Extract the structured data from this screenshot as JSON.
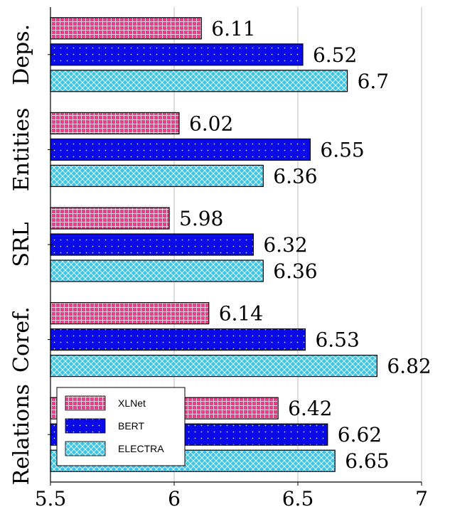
{
  "chart_data": {
    "type": "bar",
    "orientation": "horizontal",
    "categories": [
      "Deps.",
      "Entities",
      "SRL",
      "Coref.",
      "Relations"
    ],
    "series": [
      {
        "name": "XLNet",
        "values": [
          6.11,
          6.02,
          5.98,
          6.14,
          6.42
        ],
        "color": "#ee3d8c",
        "pattern": "grid"
      },
      {
        "name": "BERT",
        "values": [
          6.52,
          6.55,
          6.32,
          6.53,
          6.62
        ],
        "color": "#0a0ae6",
        "pattern": "dots"
      },
      {
        "name": "ELECTRA",
        "values": [
          6.7,
          6.36,
          6.36,
          6.82,
          6.65
        ],
        "color": "#3cc3e6",
        "pattern": "crosshatch"
      }
    ],
    "value_labels": [
      [
        "6.11",
        "6.02",
        "5.98",
        "6.14",
        "6.42"
      ],
      [
        "6.52",
        "6.55",
        "6.32",
        "6.53",
        "6.62"
      ],
      [
        "6.7",
        "6.36",
        "6.36",
        "6.82",
        "6.65"
      ]
    ],
    "xlim": [
      5.5,
      7
    ],
    "xticks": [
      5.5,
      6,
      6.5,
      7
    ],
    "xtick_labels": [
      "5.5",
      "6",
      "6.5",
      "7"
    ],
    "title": "",
    "xlabel": "",
    "ylabel": "",
    "grid": "vertical",
    "legend_position": "bottom-left"
  }
}
